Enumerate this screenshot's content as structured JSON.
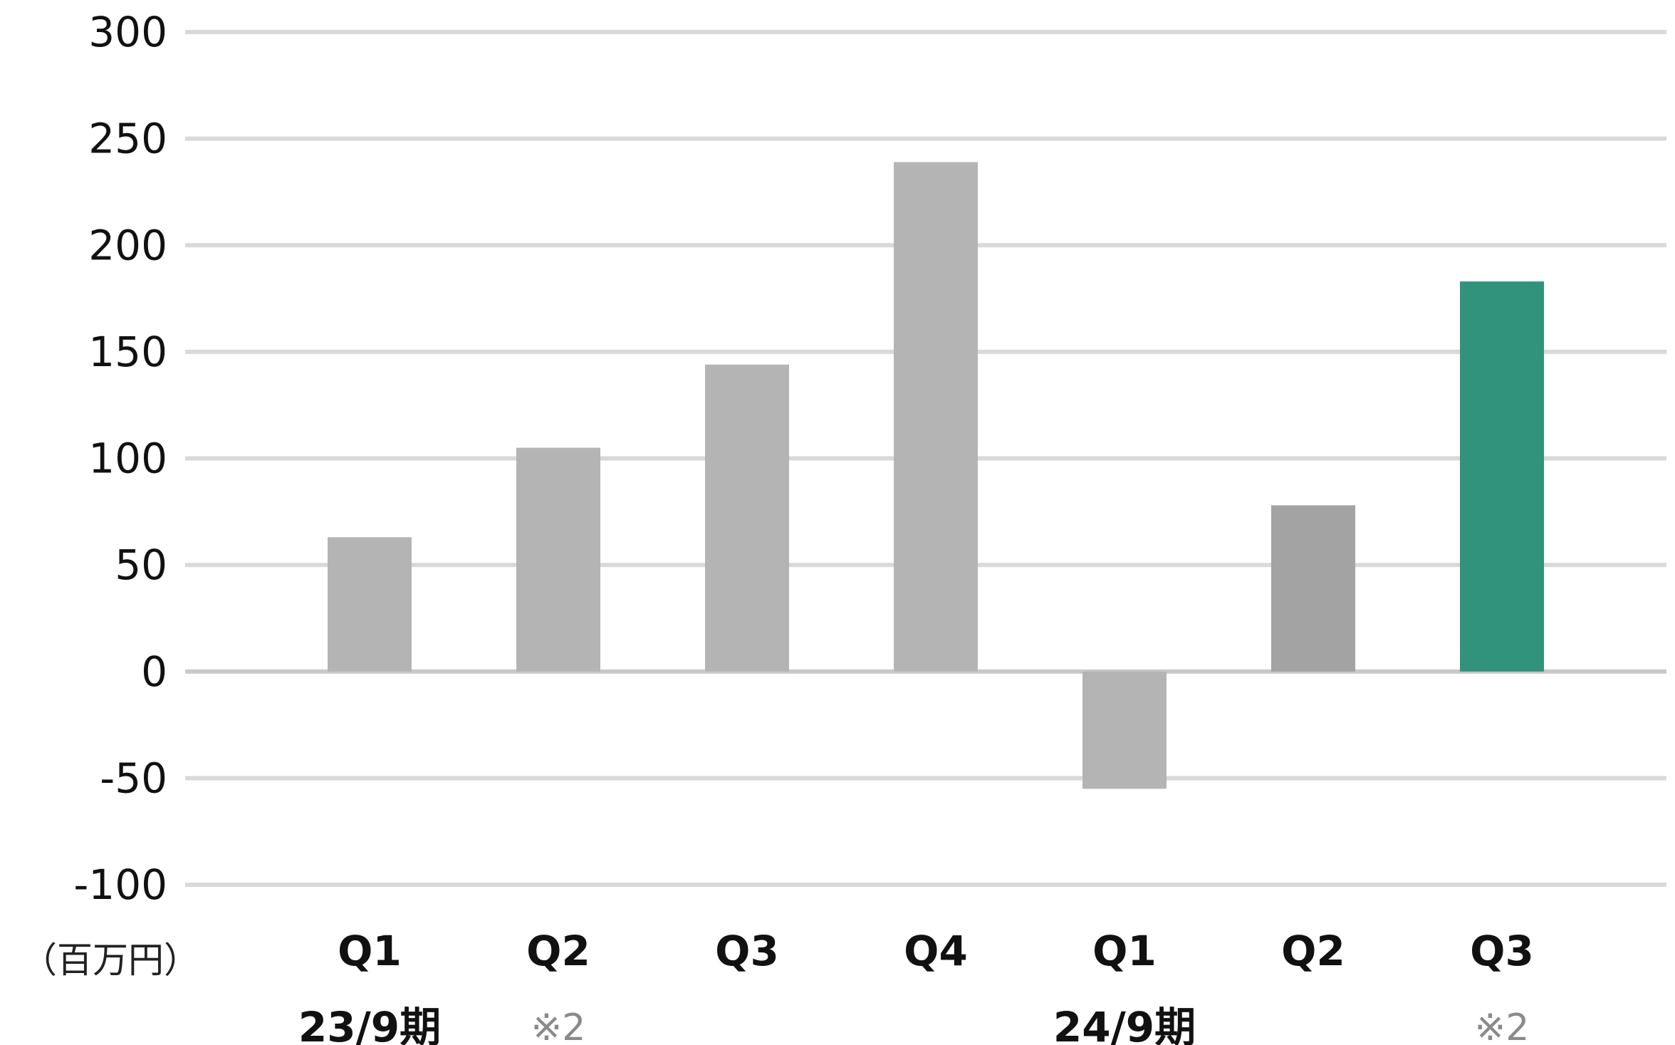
{
  "chart_data": {
    "type": "bar",
    "title": "",
    "xlabel": "",
    "ylabel": "",
    "unit_label": "（百万円）",
    "ylim": [
      -100,
      300
    ],
    "yticks": [
      "300",
      "250",
      "200",
      "150",
      "100",
      "50",
      "0",
      "-50",
      "-100"
    ],
    "ytick_values": [
      300,
      250,
      200,
      150,
      100,
      50,
      0,
      -50,
      -100
    ],
    "grid": true,
    "categories": [
      "Q1",
      "Q2",
      "Q3",
      "Q4",
      "Q1",
      "Q2",
      "Q3"
    ],
    "values": [
      63,
      105,
      144,
      239,
      -55,
      78,
      183
    ],
    "bar_colors": [
      "#b4b4b4",
      "#b4b4b4",
      "#b4b4b4",
      "#b4b4b4",
      "#b4b4b4",
      "#a3a3a3",
      "#32937c"
    ],
    "periods": [
      {
        "label": "23/9期",
        "category_index": 0
      },
      {
        "label": "24/9期",
        "category_index": 4
      }
    ],
    "notes": [
      {
        "label": "※2",
        "category_index": 1
      },
      {
        "label": "※2",
        "category_index": 6
      }
    ],
    "colors": {
      "grid": "#d9d9d9",
      "zero_line": "#c8c8c8",
      "highlight": "#32937c"
    }
  }
}
